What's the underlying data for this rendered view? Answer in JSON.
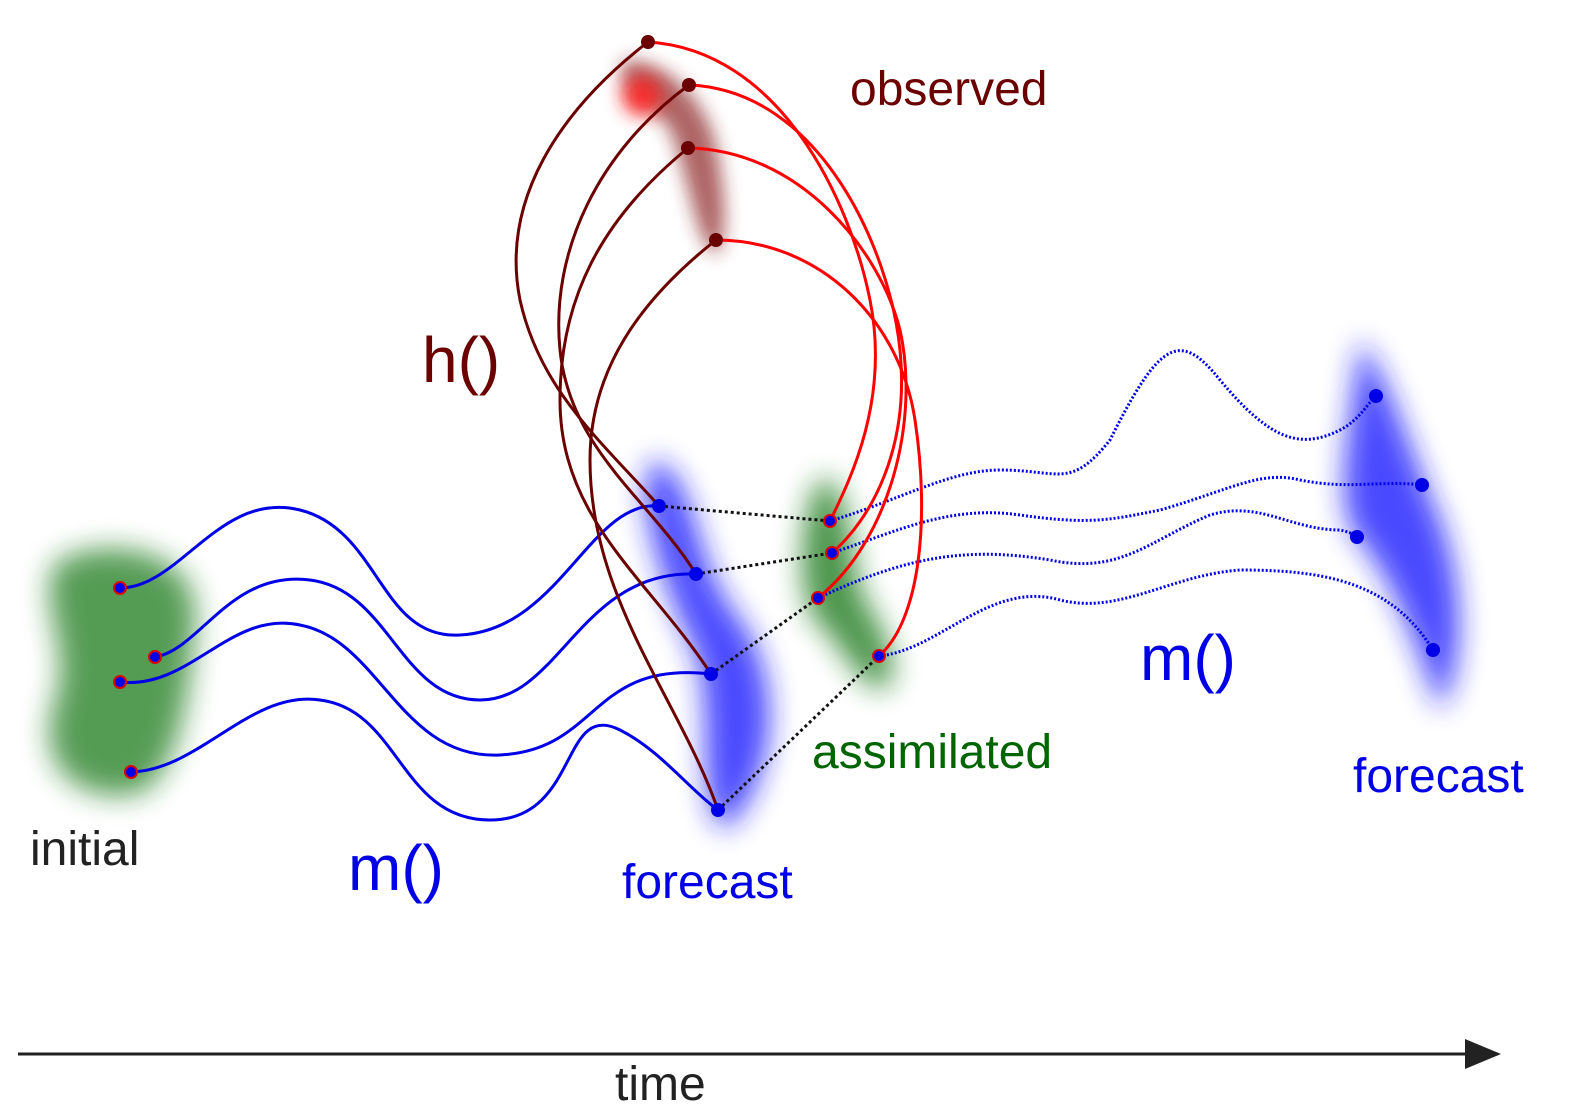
{
  "labels": {
    "initial": "initial",
    "model_first": "m()",
    "forecast_first": "forecast",
    "observed": "observed",
    "observation_operator": "h()",
    "assimilated": "assimilated",
    "model_second": "m()",
    "forecast_second": "forecast",
    "time": "time"
  }
}
